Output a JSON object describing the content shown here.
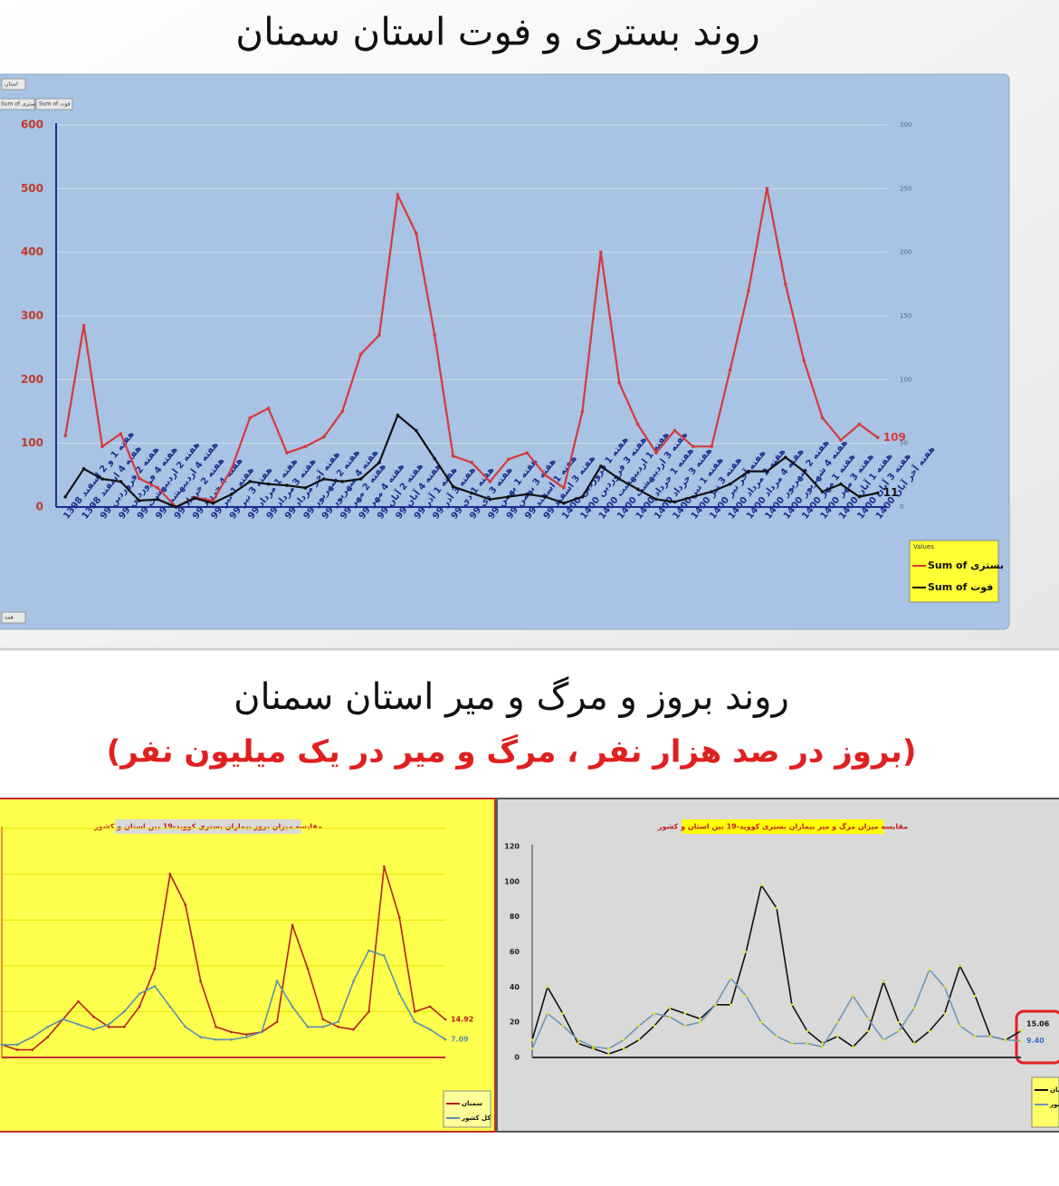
{
  "title": "روند بستری و فوت استان سمنان",
  "section_title": "روند بروز و مرگ و میر استان سمنان",
  "section_subtitle": "(بروز در صد هزار نفر ، مرگ و میر در یک میلیون نفر)",
  "chart_data": [
    {
      "type": "line",
      "filters": [
        "استان",
        "Sum of بستری",
        "Sum of فوت",
        "همه"
      ],
      "categories": [
        "هفته 1 و 2 اسفند 1398",
        "هفته 4 اسفند 1398",
        "هفته 2 فروردین 99",
        "هفته 4 فروردین 99",
        "هفته 2 اردیبهشت 99",
        "هفته 4 اردیبهشت 99",
        "هفته 2 خرداد 99",
        "هفته 4 خرداد 99",
        "هفته 1 تیر 99",
        "هفته 3 تیر 99",
        "هفته 1 مرداد 99",
        "هفته 3 مرداد 99",
        "هفته آخر مرداد 99",
        "هفته 2 شهریور 99",
        "هفته 4 شهریور 99",
        "هفته 2 مهر 99",
        "هفته 4 مهر 99",
        "هفته 2 آبان 99",
        "هفته 4 آبان 99",
        "هفته 1 آذر 99",
        "هفته 3 آذر 99",
        "هفته 1 دی 99",
        "هفته 3 دی 99",
        "هفته 1 بهمن 99",
        "هفته 3 بهمن 99",
        "هفته 1 اسفند 99",
        "هفته 3 اسفند 99",
        "هفته 1 فروردین 1400",
        "هفته 3 فروردین 1400",
        "هفته 1 اردیبهشت 1400",
        "هفته 3 اردیبهشت 1400",
        "هفته 1 خرداد 1400",
        "هفته 3 خرداد 1400",
        "هفته 1 تیر 1400",
        "هفته 3 تیر 1400",
        "هفته آخر تیر 1400",
        "هفته 2 مرداد 1400",
        "هفته 4 مرداد 1400",
        "هفته 2 شهریور 1400",
        "هفته 4 شهریور 1400",
        "هفته 1 مهر 1400",
        "هفته 3 مهر 1400",
        "هفته 1 آبان 1400",
        "هفته 3 آبان 1400",
        "هفته آخر آبان 1400"
      ],
      "series": [
        {
          "name": "Sum of بستری",
          "color": "#d63a3a",
          "values": [
            112,
            285,
            95,
            115,
            45,
            30,
            0,
            15,
            10,
            60,
            140,
            155,
            85,
            95,
            110,
            150,
            240,
            270,
            490,
            430,
            270,
            80,
            70,
            40,
            75,
            85,
            50,
            30,
            150,
            400,
            195,
            130,
            85,
            120,
            95,
            95,
            215,
            340,
            500,
            350,
            230,
            140,
            105,
            130,
            109
          ]
        },
        {
          "name": "Sum of فوت",
          "color": "#111111",
          "axis": "y2",
          "values": [
            8,
            30,
            22,
            20,
            5,
            6,
            0,
            7,
            3,
            10,
            20,
            18,
            17,
            15,
            22,
            20,
            22,
            35,
            72,
            60,
            38,
            16,
            11,
            6,
            8,
            10,
            8,
            3,
            8,
            32,
            22,
            14,
            6,
            4,
            8,
            12,
            18,
            28,
            28,
            39,
            28,
            12,
            18,
            8,
            11
          ]
        }
      ],
      "end_labels": true,
      "ylim": [
        0,
        600
      ],
      "yticks": [
        0,
        100,
        200,
        300,
        400,
        500,
        600
      ],
      "y2lim": [
        0,
        300
      ],
      "y2ticks": [
        0,
        50,
        100,
        150,
        200,
        250,
        300
      ],
      "grid": true,
      "legend_title": "Values",
      "legend": "bottom-right"
    },
    {
      "type": "line",
      "title": "مقایسه میزان بروز بیماران بستری کووید-19 بین استان و کشور",
      "series": [
        {
          "name": "سمنان",
          "color": "#b52020",
          "values": [
            5,
            3,
            3,
            8,
            15,
            22,
            16,
            12,
            12,
            20,
            35,
            72,
            60,
            30,
            12,
            10,
            9,
            10,
            14,
            52,
            35,
            15,
            12,
            11,
            18,
            75,
            55,
            18,
            20,
            14.92
          ]
        },
        {
          "name": "کل کشور",
          "color": "#5b8fb0",
          "values": [
            5,
            5,
            8,
            12,
            15,
            13,
            11,
            13,
            18,
            25,
            28,
            20,
            12,
            8,
            7,
            7,
            8,
            10,
            30,
            20,
            12,
            12,
            14,
            30,
            42,
            40,
            25,
            14,
            11,
            7.09
          ]
        }
      ],
      "end_labels": true,
      "ylim": [
        0,
        90
      ],
      "grid": true,
      "legend": "bottom-right"
    },
    {
      "type": "line",
      "title": "مقایسه میزان مرگ و میر بیماران بستری کووید-19 بین استان و کشور",
      "series": [
        {
          "name": "سمنان",
          "color": "#111111",
          "values": [
            10,
            40,
            25,
            8,
            5,
            2,
            5,
            10,
            18,
            28,
            25,
            22,
            30,
            30,
            60,
            98,
            85,
            30,
            15,
            8,
            12,
            6,
            15,
            43,
            20,
            8,
            15,
            25,
            52,
            35,
            12,
            10,
            15.06
          ]
        },
        {
          "name": "کشور",
          "color": "#6f97b8",
          "values": [
            5,
            25,
            18,
            10,
            6,
            5,
            10,
            18,
            25,
            23,
            18,
            20,
            30,
            45,
            35,
            20,
            12,
            8,
            8,
            6,
            20,
            35,
            22,
            10,
            15,
            28,
            50,
            40,
            18,
            12,
            12,
            10,
            9.4
          ],
          "value_labels": [
            null,
            null,
            null,
            null,
            null,
            null,
            null,
            null,
            null,
            null,
            null,
            null,
            null,
            null,
            null,
            null,
            null,
            null,
            null,
            null,
            null,
            null,
            null,
            null,
            null,
            null,
            null,
            null,
            null,
            null,
            null,
            null,
            "9.40"
          ]
        }
      ],
      "end_labels": true,
      "ylim": [
        0,
        120
      ],
      "yticks": [
        0,
        20,
        40,
        60,
        80,
        100,
        120
      ],
      "grid": false,
      "legend": "bottom-right"
    }
  ]
}
